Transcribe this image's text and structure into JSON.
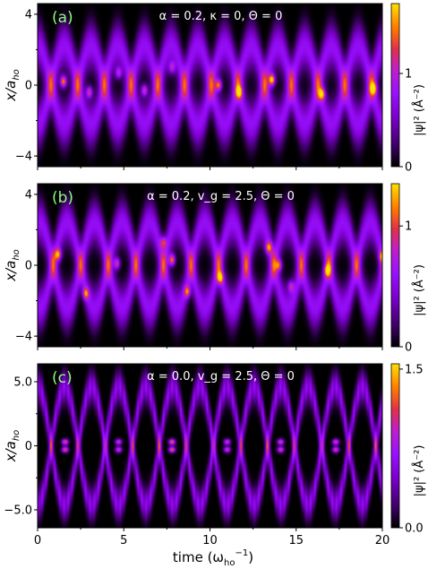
{
  "figure": {
    "xlabel": "time (ω",
    "xlabel_sub": "ho",
    "xlabel_sup": "−1",
    "xlabel_close": ")",
    "x_ticks": [
      "0",
      "5",
      "10",
      "15",
      "20"
    ],
    "colorbar_label": "|ψ|² (Å⁻²)"
  },
  "chart_data": [
    {
      "type": "heatmap",
      "panel_label": "(a)",
      "title": "α = 0.2, κ = 0, Θ = 0",
      "ylabel": "x/a",
      "ylabel_sub": "ho",
      "xlim": [
        0,
        20
      ],
      "ylim": [
        -4.6,
        4.6
      ],
      "y_ticks": [
        {
          "v": 4,
          "l": "4"
        },
        {
          "v": 0,
          "l": "0"
        },
        {
          "v": -4,
          "l": "−4"
        }
      ],
      "colorbar": {
        "range": [
          0,
          1.75
        ],
        "ticks": [
          {
            "v": 0,
            "l": "0"
          },
          {
            "v": 1,
            "l": "1"
          }
        ]
      },
      "period": 3.1,
      "phase": 0.0,
      "amplitude": 2.2,
      "width": 0.9,
      "spots": [
        {
          "t": 1.5,
          "x": 0.2,
          "i": 1.5
        },
        {
          "t": 3.0,
          "x": -0.4,
          "i": 1.1
        },
        {
          "t": 4.7,
          "x": 0.7,
          "i": 0.9
        },
        {
          "t": 6.2,
          "x": -0.3,
          "i": 1.1
        },
        {
          "t": 7.8,
          "x": 1.0,
          "i": 0.8
        },
        {
          "t": 10.5,
          "x": 0.0,
          "i": 1.3
        },
        {
          "t": 11.7,
          "x": -0.4,
          "i": 1.0
        },
        {
          "t": 13.6,
          "x": 0.3,
          "i": 1.6
        },
        {
          "t": 16.5,
          "x": -0.5,
          "i": 1.2
        },
        {
          "t": 19.5,
          "x": -0.2,
          "i": 1.1
        }
      ]
    },
    {
      "type": "heatmap",
      "panel_label": "(b)",
      "title": "α = 0.2, v_g = 2.5, Θ = 0",
      "ylabel": "x/a",
      "ylabel_sub": "ho",
      "xlim": [
        0,
        20
      ],
      "ylim": [
        -4.6,
        4.6
      ],
      "y_ticks": [
        {
          "v": 4,
          "l": "4"
        },
        {
          "v": 0,
          "l": "0"
        },
        {
          "v": -4,
          "l": "−4"
        }
      ],
      "colorbar": {
        "range": [
          0,
          1.35
        ],
        "ticks": [
          {
            "v": 0,
            "l": "0"
          },
          {
            "v": 1,
            "l": "1"
          }
        ]
      },
      "period": 3.2,
      "phase": -0.2,
      "amplitude": 2.4,
      "width": 0.85,
      "spots": [
        {
          "t": 1.2,
          "x": 0.6,
          "i": 1.2
        },
        {
          "t": 2.8,
          "x": -1.6,
          "i": 1.0
        },
        {
          "t": 4.6,
          "x": 0.1,
          "i": 1.1
        },
        {
          "t": 7.3,
          "x": 1.3,
          "i": 0.9
        },
        {
          "t": 7.8,
          "x": 0.3,
          "i": 1.4
        },
        {
          "t": 8.7,
          "x": -1.5,
          "i": 1.0
        },
        {
          "t": 10.6,
          "x": -0.7,
          "i": 1.1
        },
        {
          "t": 13.4,
          "x": 1.0,
          "i": 1.0
        },
        {
          "t": 14.0,
          "x": 0.0,
          "i": 1.1
        },
        {
          "t": 14.7,
          "x": -1.2,
          "i": 0.8
        },
        {
          "t": 16.8,
          "x": -0.3,
          "i": 1.0
        },
        {
          "t": 20.0,
          "x": 0.5,
          "i": 1.0
        }
      ]
    },
    {
      "type": "heatmap",
      "panel_label": "(c)",
      "title": "α = 0.0, v_g = 2.5, Θ = 0",
      "ylabel": "x/a",
      "ylabel_sub": "ho",
      "xlim": [
        0,
        20
      ],
      "ylim": [
        -6.4,
        6.4
      ],
      "y_ticks": [
        {
          "v": 5,
          "l": "5.0"
        },
        {
          "v": 0,
          "l": "0"
        },
        {
          "v": -5,
          "l": "−5.0"
        }
      ],
      "colorbar": {
        "range": [
          0,
          1.55
        ],
        "ticks": [
          {
            "v": 0,
            "l": "0.0"
          },
          {
            "v": 1.5,
            "l": "1.5"
          }
        ]
      },
      "period": 3.14,
      "phase": 0.0,
      "amplitude": 4.6,
      "width": 0.85,
      "spots": [
        {
          "t": 1.6,
          "x": 0.3,
          "i": 1.4
        },
        {
          "t": 1.6,
          "x": -0.3,
          "i": 1.4
        },
        {
          "t": 4.7,
          "x": 0.3,
          "i": 1.2
        },
        {
          "t": 4.7,
          "x": -0.3,
          "i": 1.2
        },
        {
          "t": 7.8,
          "x": 0.3,
          "i": 1.5
        },
        {
          "t": 7.8,
          "x": -0.3,
          "i": 1.5
        },
        {
          "t": 11.0,
          "x": 0.3,
          "i": 1.2
        },
        {
          "t": 11.0,
          "x": -0.3,
          "i": 1.2
        },
        {
          "t": 14.1,
          "x": 0.3,
          "i": 1.3
        },
        {
          "t": 14.1,
          "x": -0.3,
          "i": 1.3
        },
        {
          "t": 17.3,
          "x": 0.3,
          "i": 1.3
        },
        {
          "t": 17.3,
          "x": -0.3,
          "i": 1.3
        }
      ]
    }
  ]
}
